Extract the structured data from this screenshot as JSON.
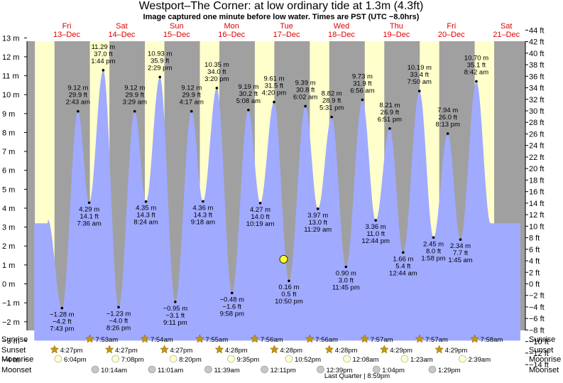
{
  "title": "Westport–The Corner: at low  ordinary tide at 1.3m (4.3ft)",
  "subtitle": "Image captured one minute before low water. Times are PST (UTC −8.0hrs)",
  "days": [
    {
      "name": "Fri",
      "date": "13–Dec"
    },
    {
      "name": "Sat",
      "date": "14–Dec"
    },
    {
      "name": "Sun",
      "date": "15–Dec"
    },
    {
      "name": "Mon",
      "date": "16–Dec"
    },
    {
      "name": "Tue",
      "date": "17–Dec"
    },
    {
      "name": "Wed",
      "date": "18–Dec"
    },
    {
      "name": "Thu",
      "date": "19–Dec"
    },
    {
      "name": "Fri",
      "date": "20–Dec"
    },
    {
      "name": "Sat",
      "date": "21–Dec"
    }
  ],
  "left_ticks": [
    "13 m",
    "12 m",
    "11 m",
    "10 m",
    "9 m",
    "8 m",
    "7 m",
    "6 m",
    "5 m",
    "4 m",
    "3 m",
    "2 m",
    "1 m",
    "0 m",
    "−1 m",
    "−2 m",
    "−3 m",
    "−4 m"
  ],
  "right_ticks": [
    "44 ft",
    "42 ft",
    "40 ft",
    "38 ft",
    "36 ft",
    "34 ft",
    "32 ft",
    "30 ft",
    "28 ft",
    "26 ft",
    "24 ft",
    "22 ft",
    "20 ft",
    "18 ft",
    "16 ft",
    "14 ft",
    "12 ft",
    "10 ft",
    "8 ft",
    "6 ft",
    "4 ft",
    "2 ft",
    "0 ft",
    "−2 ft",
    "−4 ft",
    "−6 ft",
    "−8 ft",
    "−10 ft",
    "−12 ft",
    "−14 ft"
  ],
  "current": {
    "height_m": 1.3
  },
  "chart_data": {
    "type": "area",
    "xlabel": "",
    "ylabel": "",
    "ylim_m": [
      -4.5,
      13.5
    ],
    "ylim_ft": [
      -14,
      44
    ],
    "tides": [
      {
        "time": "7:43 pm",
        "m": "−1.28 m",
        "ft": "−4.2 ft",
        "label_t": "7:43 pm",
        "h": -1.28,
        "kind": "low"
      },
      {
        "time": "2:43 am",
        "m": "9.12 m",
        "ft": "29.9 ft",
        "label_t": "2:43 am",
        "h": 9.12,
        "kind": "high"
      },
      {
        "time": "7:36 am",
        "m": "4.29 m",
        "ft": "14.1 ft",
        "label_t": "7:36 am",
        "h": 4.29,
        "kind": "low"
      },
      {
        "time": "1:44 pm",
        "m": "11.29 m",
        "ft": "37.0 ft",
        "label_t": "1:44 pm",
        "h": 11.29,
        "kind": "high"
      },
      {
        "time": "8:26 pm",
        "m": "−1.23 m",
        "ft": "−4.0 ft",
        "label_t": "8:26 pm",
        "h": -1.23,
        "kind": "low"
      },
      {
        "time": "3:29 am",
        "m": "9.12 m",
        "ft": "29.9 ft",
        "label_t": "3:29 am",
        "h": 9.12,
        "kind": "high"
      },
      {
        "time": "8:24 am",
        "m": "4.35 m",
        "ft": "14.3 ft",
        "label_t": "8:24 am",
        "h": 4.35,
        "kind": "low"
      },
      {
        "time": "2:29 pm",
        "m": "10.93 m",
        "ft": "35.9 ft",
        "label_t": "2:29 pm",
        "h": 10.93,
        "kind": "high"
      },
      {
        "time": "9:11 pm",
        "m": "−0.95 m",
        "ft": "−3.1 ft",
        "label_t": "9:11 pm",
        "h": -0.95,
        "kind": "low"
      },
      {
        "time": "4:17 am",
        "m": "9.12 m",
        "ft": "29.9 ft",
        "label_t": "4:17 am",
        "h": 9.12,
        "kind": "high"
      },
      {
        "time": "9:18 am",
        "m": "4.36 m",
        "ft": "14.3 ft",
        "label_t": "9:18 am",
        "h": 4.36,
        "kind": "low"
      },
      {
        "time": "3:20 pm",
        "m": "10.35 m",
        "ft": "34.0 ft",
        "label_t": "3:20 pm",
        "h": 10.35,
        "kind": "high"
      },
      {
        "time": "9:58 pm",
        "m": "−0.48 m",
        "ft": "−1.6 ft",
        "label_t": "9:58 pm",
        "h": -0.48,
        "kind": "low"
      },
      {
        "time": "5:08 am",
        "m": "9.19 m",
        "ft": "30.2 ft",
        "label_t": "5:08 am",
        "h": 9.19,
        "kind": "high"
      },
      {
        "time": "10:19 am",
        "m": "4.27 m",
        "ft": "14.0 ft",
        "label_t": "10:19 am",
        "h": 4.27,
        "kind": "low"
      },
      {
        "time": "4:20 pm",
        "m": "9.61 m",
        "ft": "31.5 ft",
        "label_t": "4:20 pm",
        "h": 9.61,
        "kind": "high"
      },
      {
        "time": "10:50 pm",
        "m": "0.16 m",
        "ft": "0.5 ft",
        "label_t": "10:50 pm",
        "h": 0.16,
        "kind": "low"
      },
      {
        "time": "6:02 am",
        "m": "9.39 m",
        "ft": "30.8 ft",
        "label_t": "6:02 am",
        "h": 9.39,
        "kind": "high"
      },
      {
        "time": "11:29 am",
        "m": "3.97 m",
        "ft": "13.0 ft",
        "label_t": "11:29 am",
        "h": 3.97,
        "kind": "low"
      },
      {
        "time": "5:31 pm",
        "m": "8.82 m",
        "ft": "28.9 ft",
        "label_t": "5:31 pm",
        "h": 8.82,
        "kind": "high"
      },
      {
        "time": "11:45 pm",
        "m": "0.90 m",
        "ft": "3.0 ft",
        "label_t": "11:45 pm",
        "h": 0.9,
        "kind": "low"
      },
      {
        "time": "6:56 am",
        "m": "9.73 m",
        "ft": "31.9 ft",
        "label_t": "6:56 am",
        "h": 9.73,
        "kind": "high"
      },
      {
        "time": "12:44 pm",
        "m": "3.36 m",
        "ft": "11.0 ft",
        "label_t": "12:44 pm",
        "h": 3.36,
        "kind": "low"
      },
      {
        "time": "6:51 pm",
        "m": "8.21 m",
        "ft": "26.9 ft",
        "label_t": "6:51 pm",
        "h": 8.21,
        "kind": "high"
      },
      {
        "time": "12:44 am",
        "m": "1.66 m",
        "ft": "5.4 ft",
        "label_t": "12:44 am",
        "h": 1.66,
        "kind": "low"
      },
      {
        "time": "7:50 am",
        "m": "10.19 m",
        "ft": "33.4 ft",
        "label_t": "7:50 am",
        "h": 10.19,
        "kind": "high"
      },
      {
        "time": "1:58 pm",
        "m": "2.45 m",
        "ft": "8.0 ft",
        "label_t": "1:58 pm",
        "h": 2.45,
        "kind": "low"
      },
      {
        "time": "8:13 pm",
        "m": "7.94 m",
        "ft": "26.0 ft",
        "label_t": "8:13 pm",
        "h": 7.94,
        "kind": "high"
      },
      {
        "time": "1:45 am",
        "m": "2.34 m",
        "ft": "7.7 ft",
        "label_t": "1:45 am",
        "h": 2.34,
        "kind": "low"
      },
      {
        "time": "8:42 am",
        "m": "10.70 m",
        "ft": "35.1 ft",
        "label_t": "8:42 am",
        "h": 10.7,
        "kind": "high"
      }
    ]
  },
  "rows": {
    "sunrise": {
      "label": "Sunrise",
      "times": [
        "7:53am",
        "7:54am",
        "7:55am",
        "7:56am",
        "7:56am",
        "7:57am",
        "7:57am",
        "7:58am"
      ]
    },
    "sunset": {
      "label": "Sunset",
      "times": [
        "4:27pm",
        "4:27pm",
        "4:27pm",
        "4:28pm",
        "4:28pm",
        "4:28pm",
        "4:29pm",
        "4:29pm"
      ]
    },
    "moonrise": {
      "label": "Moonrise",
      "times": [
        "6:04pm",
        "7:08pm",
        "8:20pm",
        "9:35pm",
        "10:52pm",
        "12:08am",
        "1:23am",
        "2:39am"
      ]
    },
    "moonset": {
      "label": "Moonset",
      "times": [
        "10:14am",
        "11:01am",
        "11:39am",
        "12:11pm",
        "12:39pm",
        "1:04pm",
        "1:29pm"
      ]
    }
  },
  "moon_phase": "Last Quarter | 8:59pm",
  "colors": {
    "day_band": "#ffffcc",
    "night_band": "#a0a0a0",
    "water": "#a0aaff",
    "day_label": "#dd0000",
    "sun_star": "#c8960a",
    "moon_fill": "#ffffcc",
    "moonset_fill": "#c8c8c0"
  }
}
